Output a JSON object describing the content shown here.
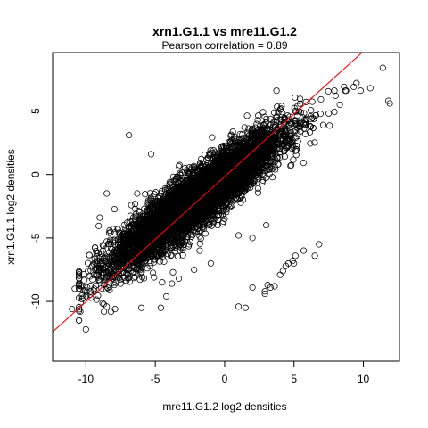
{
  "chart_data": {
    "type": "scatter",
    "title": "xrn1.G1.1 vs mre11.G1.2",
    "subtitle": "Pearson correlation =  0.89",
    "xlabel": "mre11.G1.2 log2 densities",
    "ylabel": "xrn1.G1.1 log2 densities",
    "xlim": [
      -12.4,
      12.6
    ],
    "ylim": [
      -14.7,
      9.6
    ],
    "xticks": [
      -10,
      -5,
      0,
      5,
      10
    ],
    "yticks": [
      -10,
      -5,
      0,
      5
    ],
    "tick_labels_x": [
      "-10",
      "-5",
      "0",
      "5",
      "10"
    ],
    "tick_labels_y": [
      "-10",
      "-5",
      "0",
      "5"
    ],
    "grid": false,
    "marker": "open-circle",
    "point_color": "#000000",
    "fit_line": {
      "color": "#ff0000",
      "x": [
        -12.4,
        9.9
      ],
      "y": [
        -12.4,
        9.6
      ]
    },
    "cloud": {
      "n": 7000,
      "center_x": -2.0,
      "center_y": -1.9,
      "sd_x": 3.0,
      "resid_sd": 1.1,
      "slope": 0.8
    },
    "points": [
      [
        -11.0,
        -10.6
      ],
      [
        -10.0,
        -12.2
      ],
      [
        -10.8,
        -9.0
      ],
      [
        -10.3,
        -8.8
      ],
      [
        -10.4,
        -10.8
      ],
      [
        -8.7,
        -10.8
      ],
      [
        -8.2,
        -10.8
      ],
      [
        -8.5,
        -10.4
      ],
      [
        -7.9,
        -10.6
      ],
      [
        -6.0,
        -10.5
      ],
      [
        -6.9,
        3.1
      ],
      [
        -5.3,
        1.6
      ],
      [
        -6.3,
        -1.5
      ],
      [
        -8.5,
        -1.5
      ],
      [
        -9.0,
        -3.4
      ],
      [
        -9.4,
        -9.0
      ],
      [
        -7.5,
        -8.6
      ],
      [
        -4.5,
        -8.5
      ],
      [
        -4.6,
        -10.5
      ],
      [
        -4.2,
        -9.6
      ],
      [
        -3.8,
        -8.6
      ],
      [
        -3.3,
        -8.2
      ],
      [
        -2.2,
        -7.5
      ],
      [
        -1.0,
        -7.0
      ],
      [
        -1.8,
        -6.0
      ],
      [
        1.0,
        -10.4
      ],
      [
        1.5,
        -10.5
      ],
      [
        2.9,
        -9.2
      ],
      [
        2.9,
        -9.4
      ],
      [
        3.1,
        -8.7
      ],
      [
        2.0,
        -8.9
      ],
      [
        3.3,
        -8.9
      ],
      [
        3.6,
        -8.8
      ],
      [
        4.0,
        -7.9
      ],
      [
        4.2,
        -7.6
      ],
      [
        4.4,
        -7.2
      ],
      [
        4.6,
        -7.0
      ],
      [
        4.9,
        -6.8
      ],
      [
        5.0,
        -7.0
      ],
      [
        5.1,
        -6.4
      ],
      [
        5.7,
        -6.0
      ],
      [
        6.5,
        -6.4
      ],
      [
        6.8,
        -5.5
      ],
      [
        1.0,
        -4.8
      ],
      [
        2.0,
        -5.0
      ],
      [
        3.0,
        -4.0
      ],
      [
        0.0,
        -3.5
      ],
      [
        -0.5,
        -4.0
      ],
      [
        10.5,
        6.8
      ],
      [
        11.4,
        8.4
      ],
      [
        11.8,
        5.8
      ],
      [
        11.9,
        5.6
      ],
      [
        8.0,
        6.2
      ],
      [
        8.6,
        6.9
      ],
      [
        9.3,
        6.9
      ],
      [
        9.5,
        7.2
      ],
      [
        8.3,
        5.5
      ],
      [
        7.5,
        4.8
      ],
      [
        -3.0,
        -1.5
      ],
      [
        -2.0,
        -0.9
      ]
    ]
  }
}
